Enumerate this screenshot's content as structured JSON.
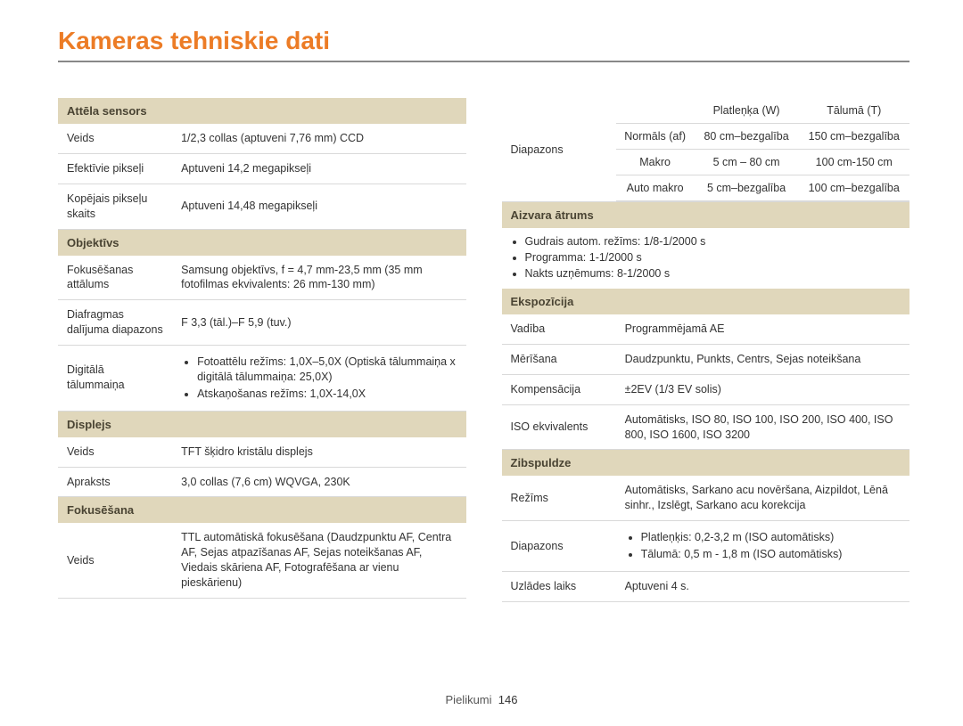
{
  "title": "Kameras tehniskie dati",
  "colors": {
    "title": "#ec7c26",
    "section_bg": "#e0d7bb",
    "rule": "#d9d9d9",
    "title_rule": "#888888",
    "text": "#333333",
    "page_bg": "#ffffff"
  },
  "footer": {
    "label": "Pielikumi",
    "page": "146"
  },
  "left": {
    "sections": [
      {
        "header": "Attēla sensors",
        "rows": [
          {
            "label": "Veids",
            "value": "1/2,3 collas (aptuveni 7,76 mm) CCD"
          },
          {
            "label": "Efektīvie pikseļi",
            "value": "Aptuveni 14,2 megapikseļi"
          },
          {
            "label": "Kopējais pikseļu skaits",
            "value": "Aptuveni 14,48 megapikseļi"
          }
        ]
      },
      {
        "header": "Objektīvs",
        "rows": [
          {
            "label": "Fokusēšanas attālums",
            "value": "Samsung objektīvs, f = 4,7 mm-23,5 mm (35 mm fotofilmas ekvivalents: 26 mm-130 mm)"
          },
          {
            "label": "Diafragmas dalījuma diapazons",
            "value": "F 3,3 (tāl.)–F 5,9 (tuv.)"
          },
          {
            "label": "Digitālā tālummaiņa",
            "list": [
              "Fotoattēlu režīms: 1,0X–5,0X (Optiskā tālummaiņa x digitālā tālummaiņa: 25,0X)",
              "Atskaņošanas režīms: 1,0X-14,0X"
            ]
          }
        ]
      },
      {
        "header": "Displejs",
        "rows": [
          {
            "label": "Veids",
            "value": "TFT šķidro kristālu displejs"
          },
          {
            "label": "Apraksts",
            "value": "3,0 collas (7,6 cm) WQVGA, 230K"
          }
        ]
      },
      {
        "header": "Fokusēšana",
        "rows": [
          {
            "label": "Veids",
            "value": "TTL automātiskā fokusēšana (Daudzpunktu AF, Centra AF, Sejas atpazīšanas AF, Sejas noteikšanas AF, Viedais skāriena AF, Fotografēšana ar vienu pieskārienu)"
          }
        ]
      }
    ]
  },
  "right": {
    "range": {
      "label": "Diapazons",
      "cols": [
        "",
        "Platleņķa (W)",
        "Tālumā (T)"
      ],
      "rows": [
        [
          "Normāls (af)",
          "80 cm–bezgalība",
          "150 cm–bezgalība"
        ],
        [
          "Makro",
          "5 cm – 80 cm",
          "100 cm-150 cm"
        ],
        [
          "Auto makro",
          "5 cm–bezgalība",
          "100 cm–bezgalība"
        ]
      ]
    },
    "shutter": {
      "header": "Aizvara ātrums",
      "items": [
        "Gudrais autom. režīms: 1/8-1/2000 s",
        "Programma: 1-1/2000 s",
        "Nakts uzņēmums: 8-1/2000 s"
      ]
    },
    "exposure": {
      "header": "Ekspozīcija",
      "rows": [
        {
          "label": "Vadība",
          "value": "Programmējamā AE"
        },
        {
          "label": "Mērīšana",
          "value": "Daudzpunktu, Punkts, Centrs, Sejas noteikšana"
        },
        {
          "label": "Kompensācija",
          "value": "±2EV (1/3 EV solis)"
        },
        {
          "label": "ISO ekvivalents",
          "value": "Automātisks, ISO 80, ISO 100, ISO 200, ISO 400, ISO 800, ISO 1600, ISO 3200"
        }
      ]
    },
    "flash": {
      "header": "Zibspuldze",
      "rows": [
        {
          "label": "Režīms",
          "value": "Automātisks, Sarkano acu novēršana, Aizpildot, Lēnā sinhr., Izslēgt, Sarkano acu korekcija"
        },
        {
          "label": "Diapazons",
          "list": [
            "Platleņķis: 0,2-3,2 m (ISO automātisks)",
            "Tālumā: 0,5 m - 1,8 m (ISO automātisks)"
          ]
        },
        {
          "label": "Uzlādes laiks",
          "value": "Aptuveni 4 s."
        }
      ]
    }
  }
}
